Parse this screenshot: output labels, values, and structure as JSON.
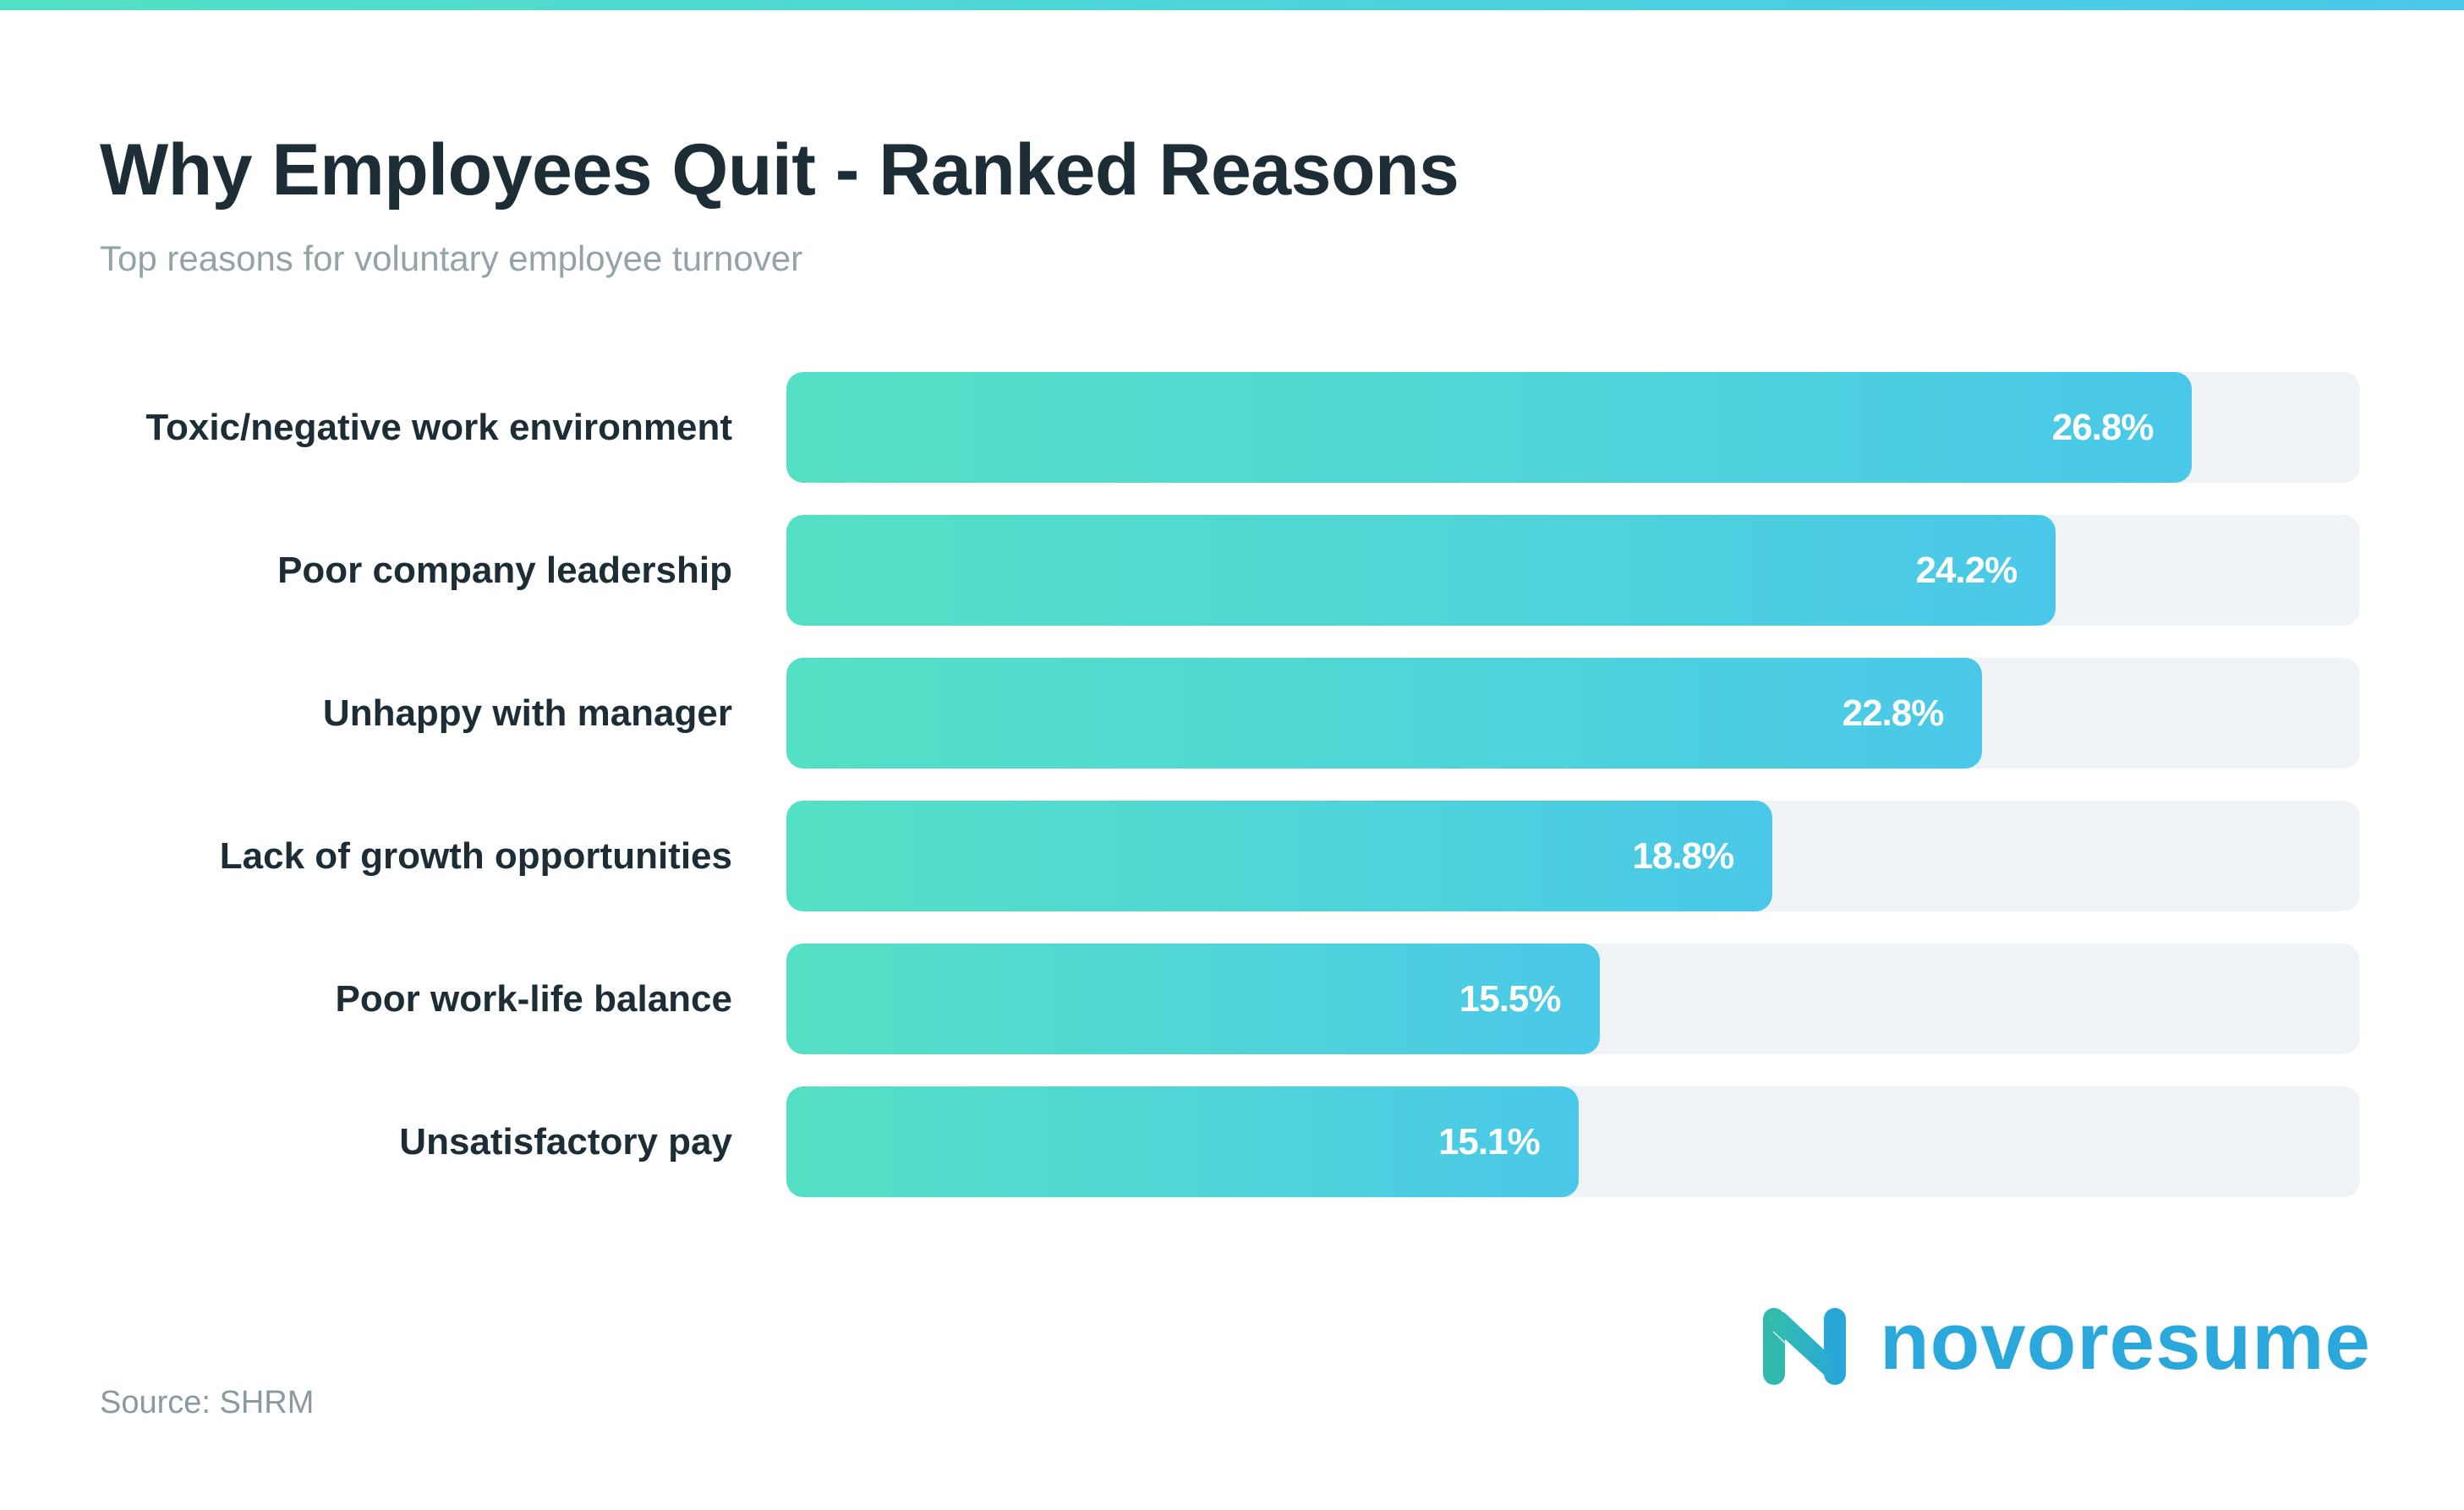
{
  "header": {
    "title": "Why Employees Quit - Ranked Reasons",
    "subtitle": "Top reasons for voluntary employee turnover"
  },
  "footer": {
    "source": "Source: SHRM",
    "brand": "novoresume",
    "brand_icon": "novoresume-n-logo-icon"
  },
  "colors": {
    "accent_start": "#54e0c4",
    "accent_end": "#4ac8e9",
    "track": "#f0f3f5",
    "title": "#1d2d35",
    "subtitle": "#94a3a8",
    "brand": "#2aa8dc"
  },
  "bars": [
    {
      "label": "Toxic/negative work environment",
      "value": 26.8,
      "value_label": "26.8%"
    },
    {
      "label": "Poor company leadership",
      "value": 24.2,
      "value_label": "24.2%"
    },
    {
      "label": "Unhappy with manager",
      "value": 22.8,
      "value_label": "22.8%"
    },
    {
      "label": "Lack of growth opportunities",
      "value": 18.8,
      "value_label": "18.8%"
    },
    {
      "label": "Poor work-life balance",
      "value": 15.5,
      "value_label": "15.5%"
    },
    {
      "label": "Unsatisfactory pay",
      "value": 15.1,
      "value_label": "15.1%"
    }
  ],
  "chart_data": {
    "type": "bar",
    "orientation": "horizontal",
    "title": "Why Employees Quit - Ranked Reasons",
    "subtitle": "Top reasons for voluntary employee turnover",
    "categories": [
      "Toxic/negative work environment",
      "Poor company leadership",
      "Unhappy with manager",
      "Lack of growth opportunities",
      "Poor work-life balance",
      "Unsatisfactory pay"
    ],
    "values": [
      26.8,
      24.2,
      22.8,
      18.8,
      15.5,
      15.1
    ],
    "value_labels": [
      "26.8%",
      "24.2%",
      "22.8%",
      "18.8%",
      "15.5%",
      "15.1%"
    ],
    "xlabel": "",
    "ylabel": "",
    "xlim": [
      0,
      30
    ],
    "unit": "%",
    "grid": false,
    "legend": null,
    "source": "Source: SHRM"
  }
}
